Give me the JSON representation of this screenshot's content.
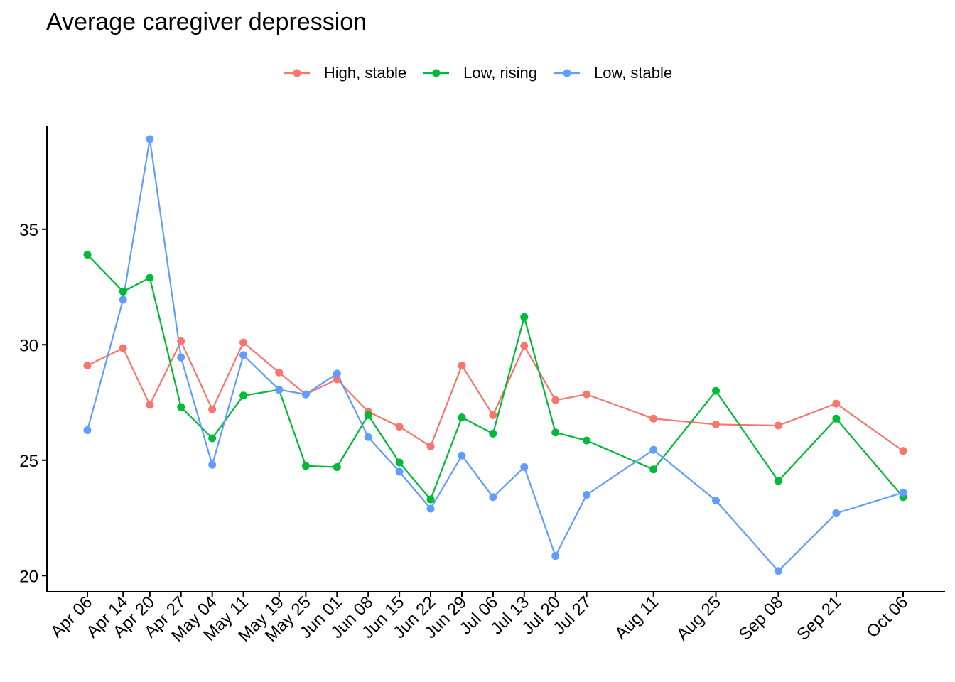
{
  "chart_data": {
    "type": "line",
    "title": "Average caregiver depression",
    "xlabel": "",
    "ylabel": "",
    "x": [
      "Apr 06",
      "Apr 14",
      "Apr 20",
      "Apr 27",
      "May 04",
      "May 11",
      "May 19",
      "May 25",
      "Jun 01",
      "Jun 08",
      "Jun 15",
      "Jun 22",
      "Jun 29",
      "Jul 06",
      "Jul 13",
      "Jul 20",
      "Jul 27",
      "Aug 11",
      "Aug 25",
      "Sep 08",
      "Sep 21",
      "Oct 06"
    ],
    "x_dates": [
      "04-06",
      "04-14",
      "04-20",
      "04-27",
      "05-04",
      "05-11",
      "05-19",
      "05-25",
      "06-01",
      "06-08",
      "06-15",
      "06-22",
      "06-29",
      "07-06",
      "07-13",
      "07-20",
      "07-27",
      "08-11",
      "08-25",
      "09-08",
      "09-21",
      "10-06"
    ],
    "ylim": [
      19.3,
      39.7
    ],
    "yticks": [
      20,
      25,
      30,
      35
    ],
    "grid": false,
    "legend_position": "top",
    "series": [
      {
        "name": "High, stable",
        "color": "#F8766D",
        "values": [
          29.1,
          29.85,
          27.4,
          30.15,
          27.2,
          30.1,
          28.8,
          27.85,
          28.5,
          27.1,
          26.45,
          25.6,
          29.1,
          26.95,
          29.95,
          27.6,
          27.85,
          26.8,
          26.55,
          26.5,
          27.45,
          25.4
        ]
      },
      {
        "name": "Low, rising",
        "color": "#00BA38",
        "values": [
          33.9,
          32.3,
          32.9,
          27.3,
          25.95,
          27.8,
          28.05,
          24.75,
          24.7,
          26.95,
          24.9,
          23.3,
          26.85,
          26.15,
          31.2,
          26.2,
          25.85,
          24.6,
          28.0,
          24.1,
          26.8,
          23.4
        ]
      },
      {
        "name": "Low, stable",
        "color": "#619CFF",
        "values": [
          26.3,
          31.95,
          38.9,
          29.45,
          24.8,
          29.55,
          28.05,
          27.85,
          28.75,
          26.0,
          24.5,
          22.9,
          25.2,
          23.4,
          24.7,
          20.85,
          23.5,
          25.45,
          23.25,
          20.2,
          22.7,
          23.6
        ]
      }
    ]
  }
}
